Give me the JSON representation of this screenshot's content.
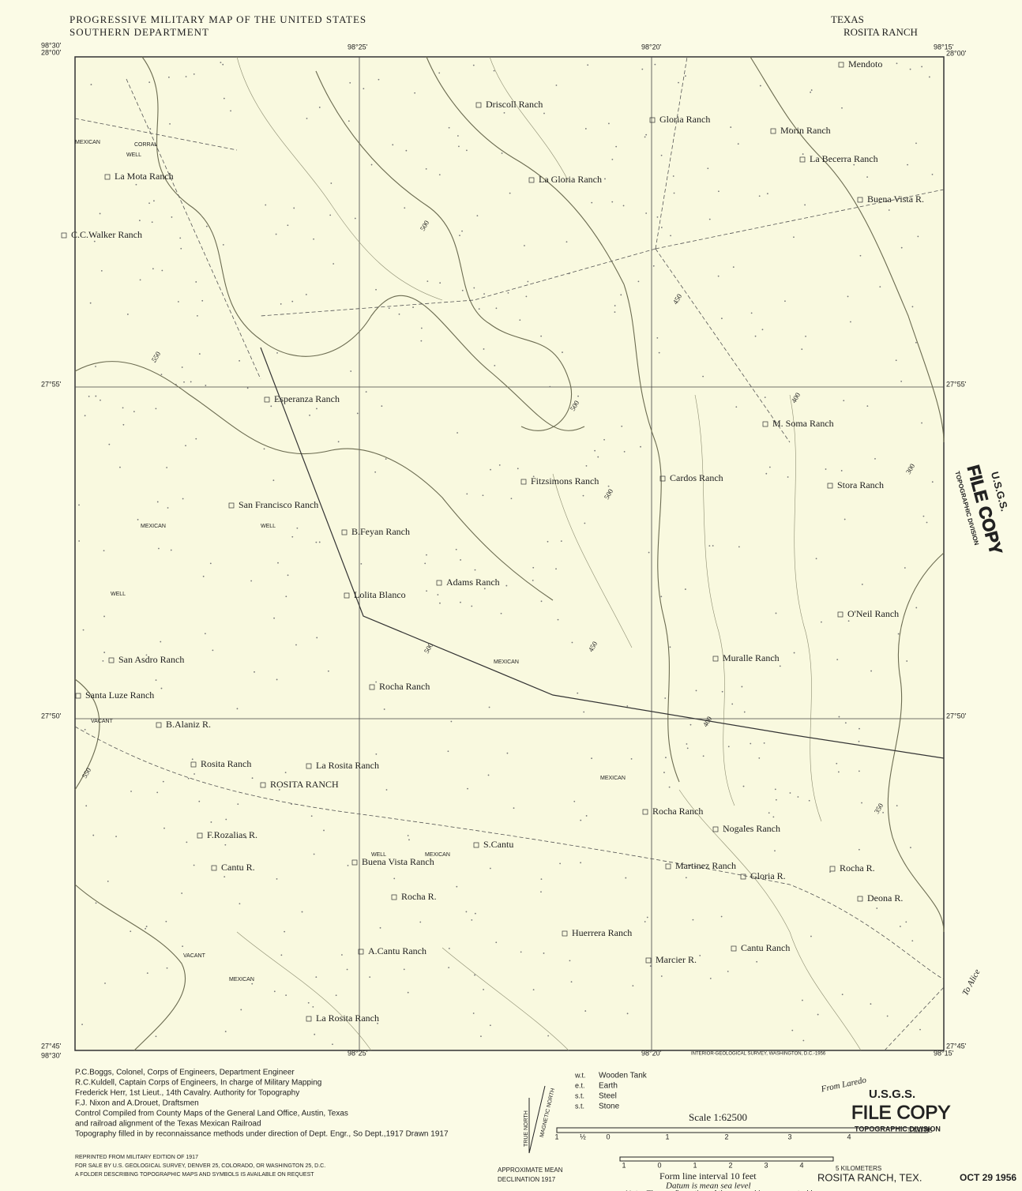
{
  "header": {
    "title": "PROGRESSIVE MILITARY MAP OF THE UNITED STATES",
    "department": "SOUTHERN DEPARTMENT",
    "state": "TEXAS",
    "quadrangle": "ROSITA RANCH"
  },
  "coordinates": [
    "28°00'",
    "98°30'",
    "98°25'",
    "98°20'",
    "98°15'",
    "28°00'",
    "27°55'",
    "27°55'",
    "27°50'",
    "27°50'",
    "27°45'",
    "98°30'",
    "98°25'",
    "98°20'",
    "98°15'",
    "27°45'"
  ],
  "places": [
    "Mendoto",
    "Driscoll Ranch",
    "Gloria Ranch",
    "Morin Ranch",
    "La Becerra Ranch",
    "Buena Vista R.",
    "La Gloria Ranch",
    "La Mota Ranch",
    "C.C.Walker Ranch",
    "Esperanza Ranch",
    "M. Soma Ranch",
    "Fitzsimons Ranch",
    "Cardos Ranch",
    "Stora Ranch",
    "San Francisco Ranch",
    "B.Feyan Ranch",
    "Adams Ranch",
    "Lolita Blanco",
    "O'Neil Ranch",
    "Muralle Ranch",
    "San Asdro Ranch",
    "Rocha Ranch",
    "Santa Luze Ranch",
    "B.Alaniz R.",
    "Rosita Ranch",
    "La Rosita Ranch",
    "ROSITA RANCH",
    "Rocha Ranch",
    "Nogales Ranch",
    "F.Rozalias R.",
    "S.Cantu",
    "Cantu R.",
    "Buena Vista Ranch",
    "Martinez Ranch",
    "Gloria R.",
    "Rocha R.",
    "Rocha R.",
    "Deona R.",
    "Huerrera Ranch",
    "A.Cantu Ranch",
    "Cantu Ranch",
    "Marcier R.",
    "La Rosita Ranch"
  ],
  "minor_labels": [
    "MEXICAN",
    "CORRAL",
    "WELL",
    "MEXICAN",
    "WELL",
    "WELL",
    "VACANT",
    "MEXICAN",
    "MEXICAN",
    "MEXICAN",
    "VACANT",
    "MEXICAN",
    "WELL"
  ],
  "contours": [
    "500",
    "450",
    "550",
    "500",
    "400",
    "500",
    "450",
    "400",
    "500",
    "550",
    "350",
    "300"
  ],
  "roads": [
    "To Alice",
    "From Laredo"
  ],
  "credits": [
    "P.C.Boggs, Colonel, Corps of Engineers, Department Engineer",
    "R.C.Kuldell, Captain Corps of Engineers, In charge of Military Mapping",
    "Frederick Herr, 1st Lieut., 14th Cavalry. Authority for Topography",
    "F.J. Nixon and A.Drouet, Draftsmen",
    "Control Compiled from County Maps of the General Land Office, Austin, Texas",
    "and railroad alignment of the Texas Mexican Railroad",
    "Topography filled in by reconnaissance methods under direction of Dept. Engr., So Dept.,1917  Drawn 1917"
  ],
  "sale": [
    "REPRINTED FROM MILITARY EDITION OF 1917",
    "FOR SALE BY U.S. GEOLOGICAL SURVEY, DENVER 25, COLORADO, OR WASHINGTON 25, D.C.",
    "A FOLDER DESCRIBING TOPOGRAPHIC MAPS AND SYMBOLS IS AVAILABLE ON REQUEST"
  ],
  "printer": "INTERIOR-GEOLOGICAL SURVEY, WASHINGTON, D.C.-1956",
  "legend": [
    {
      "symbol": "w.t.",
      "text": "Wooden Tank"
    },
    {
      "symbol": "e.t.",
      "text": "Earth"
    },
    {
      "symbol": "s.t.",
      "text": "Steel"
    },
    {
      "symbol": "s.t.",
      "text": "Stone"
    }
  ],
  "declination": {
    "true_north": "TRUE NORTH",
    "magnetic_north": "MAGNETIC NORTH",
    "caption": "APPROXIMATE MEAN",
    "year": "DECLINATION 1917"
  },
  "scale": {
    "title": "Scale 1:62500",
    "miles_ticks": [
      "1",
      "½",
      "0",
      "1",
      "2",
      "3",
      "4"
    ],
    "miles_end": "5 MILES",
    "km_ticks": [
      "1",
      "0",
      "1",
      "2",
      "3",
      "4"
    ],
    "km_end": "5 KILOMETERS",
    "interval": "Form line interval 10 feet",
    "datum": "Datum is mean sea level",
    "note": "Note: The configuration of the ground is represented by"
  },
  "footer": {
    "name": "ROSITA RANCH, TEX.",
    "date": "OCT 29 1956"
  },
  "stamps": [
    {
      "agency": "U.S.G.S.",
      "label": "FILE COPY",
      "division": "TOPOGRAPHIC DIVISION"
    },
    {
      "agency": "U.S.G.S.",
      "label": "FILE COPY",
      "division": "TOPOGRAPHIC DIVISION"
    }
  ]
}
